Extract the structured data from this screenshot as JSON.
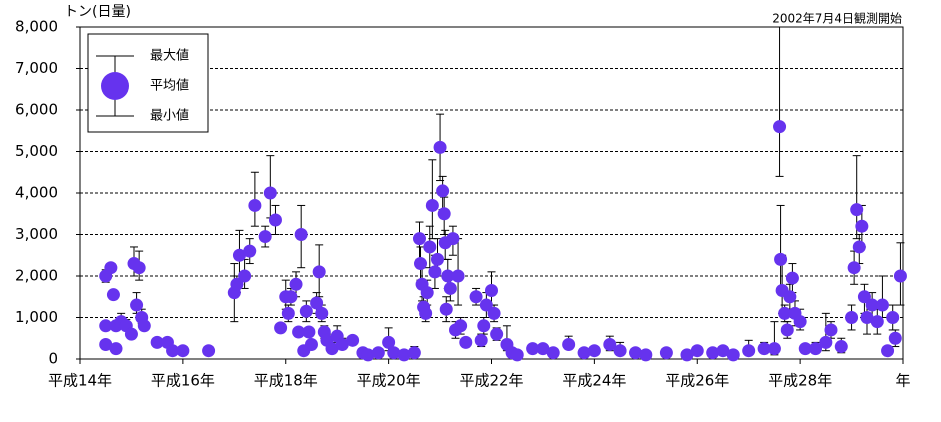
{
  "chart_data": {
    "type": "errorbar",
    "y_label": "トン(日量)",
    "annotation": "2002年7月4日観測開始",
    "legend": {
      "max": "最大値",
      "mean": "平均値",
      "min": "最小値"
    },
    "color": "#6633ee",
    "grid": true,
    "xlim": [
      14,
      30
    ],
    "xticks": [
      {
        "value": 14,
        "label": "平成14年"
      },
      {
        "value": 16,
        "label": "平成16年"
      },
      {
        "value": 18,
        "label": "平成18年"
      },
      {
        "value": 20,
        "label": "平成20年"
      },
      {
        "value": 22,
        "label": "平成22年"
      },
      {
        "value": 24,
        "label": "平成24年"
      },
      {
        "value": 26,
        "label": "平成26年"
      },
      {
        "value": 28,
        "label": "平成28年"
      },
      {
        "value": 30,
        "label": "年"
      }
    ],
    "ylim": [
      0,
      8000
    ],
    "yticks": [
      0,
      {
        "value": 1000,
        "label": "1,000"
      },
      {
        "value": 2000,
        "label": "2,000"
      },
      {
        "value": 3000,
        "label": "3,000"
      },
      {
        "value": 4000,
        "label": "4,000"
      },
      {
        "value": 5000,
        "label": "5,000"
      },
      {
        "value": 6000,
        "label": "6,000"
      },
      {
        "value": 7000,
        "label": "7,000"
      },
      {
        "value": 8000,
        "label": "8,000"
      }
    ],
    "x": [
      14.5,
      14.5,
      14.5,
      14.6,
      14.65,
      14.7,
      14.7,
      14.8,
      14.9,
      15.0,
      15.05,
      15.1,
      15.15,
      15.2,
      15.25,
      15.5,
      15.7,
      15.8,
      16.0,
      16.5,
      17.0,
      17.05,
      17.1,
      17.2,
      17.3,
      17.4,
      17.6,
      17.7,
      17.8,
      17.9,
      18.0,
      18.05,
      18.1,
      18.2,
      18.25,
      18.3,
      18.35,
      18.4,
      18.45,
      18.5,
      18.6,
      18.65,
      18.7,
      18.75,
      18.8,
      18.9,
      19.0,
      19.1,
      19.3,
      19.5,
      19.6,
      19.8,
      20.0,
      20.1,
      20.3,
      20.5,
      20.6,
      20.62,
      20.65,
      20.68,
      20.72,
      20.75,
      20.8,
      20.85,
      20.9,
      20.95,
      21.0,
      21.05,
      21.08,
      21.1,
      21.12,
      21.15,
      21.2,
      21.25,
      21.3,
      21.35,
      21.4,
      21.5,
      21.7,
      21.8,
      21.85,
      21.9,
      22.0,
      22.05,
      22.1,
      22.3,
      22.4,
      22.5,
      22.8,
      23.0,
      23.2,
      23.5,
      23.8,
      24.0,
      24.3,
      24.5,
      24.8,
      25.0,
      25.4,
      25.8,
      26.0,
      26.3,
      26.5,
      26.7,
      27.0,
      27.3,
      27.5,
      27.6,
      27.62,
      27.65,
      27.7,
      27.75,
      27.8,
      27.85,
      27.9,
      28.0,
      28.1,
      28.3,
      28.5,
      28.6,
      28.8,
      29.0,
      29.05,
      29.1,
      29.15,
      29.2,
      29.25,
      29.3,
      29.4,
      29.5,
      29.6,
      29.7,
      29.8,
      29.85,
      29.95
    ],
    "values": [
      2000,
      800,
      350,
      2200,
      1550,
      800,
      250,
      900,
      800,
      600,
      2300,
      1300,
      2200,
      1000,
      800,
      400,
      400,
      200,
      200,
      200,
      1600,
      1800,
      2500,
      2000,
      2600,
      3700,
      2950,
      4000,
      3350,
      750,
      1500,
      1100,
      1500,
      1800,
      650,
      3000,
      200,
      1150,
      650,
      350,
      1350,
      2100,
      1100,
      650,
      450,
      250,
      550,
      350,
      450,
      150,
      100,
      150,
      400,
      150,
      100,
      150,
      2900,
      2300,
      1800,
      1250,
      1100,
      1600,
      2700,
      3700,
      2100,
      2400,
      5100,
      4050,
      3500,
      2800,
      1200,
      2000,
      1700,
      2900,
      700,
      2000,
      800,
      400,
      1500,
      450,
      800,
      1300,
      1650,
      1100,
      600,
      350,
      150,
      100,
      250,
      250,
      150,
      350,
      150,
      200,
      350,
      200,
      150,
      100,
      150,
      100,
      200,
      150,
      200,
      100,
      200,
      250,
      250,
      5600,
      2400,
      1650,
      1100,
      700,
      1500,
      1950,
      1100,
      900,
      250,
      250,
      400,
      700,
      300,
      1000,
      2200,
      3600,
      2700,
      3200,
      1500,
      1000,
      1300,
      900,
      1300,
      200,
      1000,
      500,
      2000
    ],
    "max": [
      2150,
      900,
      450,
      2300,
      1650,
      900,
      300,
      1100,
      950,
      700,
      2700,
      1600,
      2600,
      1200,
      900,
      450,
      450,
      250,
      250,
      250,
      2300,
      2000,
      3100,
      2400,
      2900,
      4500,
      3200,
      4900,
      3700,
      850,
      1900,
      1300,
      1700,
      2100,
      750,
      3700,
      300,
      1400,
      750,
      450,
      1600,
      2750,
      1300,
      800,
      600,
      400,
      800,
      500,
      550,
      250,
      150,
      200,
      750,
      250,
      200,
      300,
      3300,
      2700,
      2200,
      1500,
      1300,
      1900,
      3200,
      4800,
      2500,
      2900,
      5900,
      4400,
      3900,
      3100,
      1500,
      2400,
      2000,
      3200,
      900,
      2900,
      1000,
      500,
      1700,
      600,
      1000,
      1600,
      2100,
      1300,
      750,
      800,
      250,
      200,
      350,
      300,
      250,
      550,
      250,
      300,
      550,
      400,
      250,
      200,
      250,
      200,
      300,
      250,
      250,
      200,
      450,
      400,
      900,
      8000,
      3700,
      2500,
      1300,
      900,
      1800,
      2300,
      1400,
      1200,
      350,
      400,
      1100,
      900,
      500,
      1300,
      2600,
      4900,
      3000,
      3700,
      1800,
      1400,
      1600,
      1200,
      2000,
      300,
      1300,
      700,
      2800
    ],
    "min": [
      1850,
      700,
      300,
      2100,
      1450,
      700,
      200,
      750,
      700,
      500,
      2000,
      1100,
      1900,
      850,
      700,
      350,
      350,
      150,
      150,
      150,
      900,
      1600,
      1800,
      1700,
      2300,
      3200,
      2700,
      3400,
      3000,
      650,
      1200,
      900,
      1300,
      1500,
      550,
      2200,
      150,
      900,
      550,
      250,
      1100,
      1500,
      900,
      500,
      350,
      200,
      350,
      250,
      350,
      100,
      50,
      100,
      200,
      100,
      50,
      100,
      2400,
      1900,
      1400,
      1000,
      900,
      1300,
      2200,
      2900,
      1700,
      2000,
      4300,
      3600,
      3000,
      2400,
      900,
      1700,
      1400,
      2500,
      500,
      1300,
      600,
      300,
      1300,
      300,
      600,
      1000,
      1300,
      900,
      450,
      200,
      100,
      50,
      150,
      200,
      100,
      250,
      100,
      100,
      200,
      100,
      100,
      50,
      100,
      50,
      100,
      100,
      100,
      50,
      100,
      150,
      100,
      4400,
      1600,
      1100,
      900,
      500,
      1200,
      1600,
      800,
      700,
      150,
      150,
      200,
      500,
      150,
      700,
      1800,
      2900,
      2300,
      2700,
      1100,
      600,
      1000,
      600,
      1000,
      100,
      700,
      300,
      1300
    ]
  }
}
